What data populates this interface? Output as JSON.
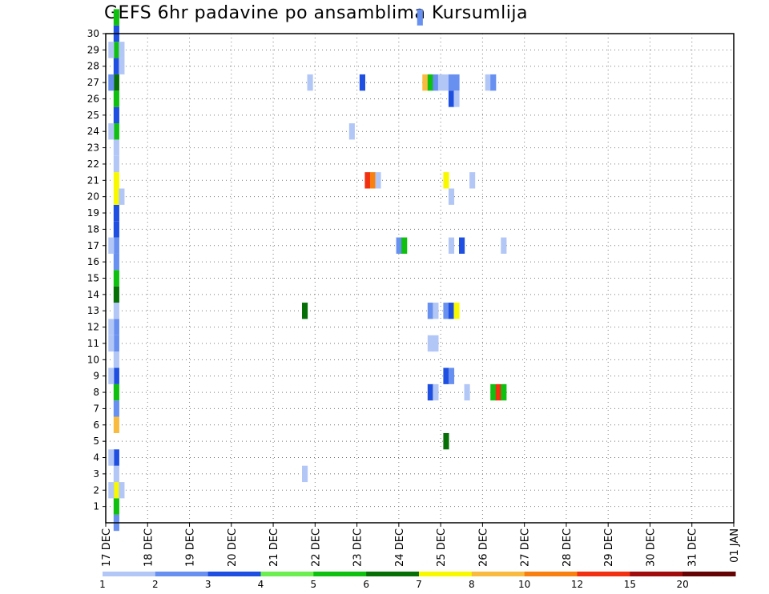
{
  "title": "GEFS 6hr padavine po ansamblima Kursumlija",
  "chart_data": {
    "type": "heatmap",
    "title": "GEFS 6hr padavine po ansamblima Kursumlija",
    "x_tick_labels": [
      "17 DEC",
      "18 DEC",
      "19 DEC",
      "20 DEC",
      "21 DEC",
      "22 DEC",
      "23 DEC",
      "24 DEC",
      "25 DEC",
      "26 DEC",
      "27 DEC",
      "28 DEC",
      "29 DEC",
      "30 DEC",
      "31 DEC",
      "01 JAN"
    ],
    "y_tick_labels": [
      1,
      2,
      3,
      4,
      5,
      6,
      7,
      8,
      9,
      10,
      11,
      12,
      13,
      14,
      15,
      16,
      17,
      18,
      19,
      20,
      21,
      22,
      23,
      24,
      25,
      26,
      27,
      28,
      29,
      30
    ],
    "x_unit": "6-hour steps from 17 DEC 00Z",
    "xlim": [
      0,
      60
    ],
    "ylim": [
      0,
      30
    ],
    "grid": true,
    "colorbar": {
      "labels": [
        "1",
        "2",
        "3",
        "4",
        "5",
        "6",
        "7",
        "8",
        "10",
        "12",
        "15",
        "20"
      ],
      "colors": [
        "#b3c7f7",
        "#6890f0",
        "#1f4fe0",
        "#6cee50",
        "#10c010",
        "#067006",
        "#f8f800",
        "#f8bb40",
        "#f88010",
        "#f03010",
        "#a00c0c",
        "#640404"
      ]
    },
    "cells": [
      {
        "x": 0.75,
        "y": 0,
        "c": 2
      },
      {
        "x": 0.75,
        "y": 1,
        "c": 5
      },
      {
        "x": 0.75,
        "y": 2,
        "c": 7
      },
      {
        "x": 0.25,
        "y": 2,
        "c": 1
      },
      {
        "x": 1.25,
        "y": 2,
        "c": 1
      },
      {
        "x": 0.75,
        "y": 3,
        "c": 1
      },
      {
        "x": 0.75,
        "y": 4,
        "c": 3
      },
      {
        "x": 0.25,
        "y": 4,
        "c": 1
      },
      {
        "x": 0.75,
        "y": 6,
        "c": 8
      },
      {
        "x": 0.75,
        "y": 7,
        "c": 2
      },
      {
        "x": 0.75,
        "y": 8,
        "c": 5
      },
      {
        "x": 0.75,
        "y": 9,
        "c": 3
      },
      {
        "x": 0.25,
        "y": 9,
        "c": 1
      },
      {
        "x": 0.75,
        "y": 10,
        "c": 1
      },
      {
        "x": 0.75,
        "y": 11,
        "c": 2
      },
      {
        "x": 0.25,
        "y": 11,
        "c": 1
      },
      {
        "x": 0.75,
        "y": 12,
        "c": 2
      },
      {
        "x": 0.25,
        "y": 12,
        "c": 1
      },
      {
        "x": 0.75,
        "y": 13,
        "c": 1
      },
      {
        "x": 0.75,
        "y": 14,
        "c": 6
      },
      {
        "x": 0.75,
        "y": 15,
        "c": 5
      },
      {
        "x": 0.75,
        "y": 16,
        "c": 2
      },
      {
        "x": 0.75,
        "y": 17,
        "c": 2
      },
      {
        "x": 0.25,
        "y": 17,
        "c": 1
      },
      {
        "x": 0.75,
        "y": 18,
        "c": 3
      },
      {
        "x": 0.75,
        "y": 19,
        "c": 3
      },
      {
        "x": 0.75,
        "y": 20,
        "c": 7
      },
      {
        "x": 1.25,
        "y": 20,
        "c": 1
      },
      {
        "x": 0.75,
        "y": 21,
        "c": 7
      },
      {
        "x": 0.75,
        "y": 22,
        "c": 1
      },
      {
        "x": 0.75,
        "y": 23,
        "c": 1
      },
      {
        "x": 0.75,
        "y": 24,
        "c": 5
      },
      {
        "x": 0.25,
        "y": 24,
        "c": 1
      },
      {
        "x": 0.75,
        "y": 25,
        "c": 3
      },
      {
        "x": 0.75,
        "y": 26,
        "c": 5
      },
      {
        "x": 0.75,
        "y": 27,
        "c": 6
      },
      {
        "x": 0.25,
        "y": 27,
        "c": 2
      },
      {
        "x": 0.75,
        "y": 28,
        "c": 3
      },
      {
        "x": 1.25,
        "y": 28,
        "c": 1
      },
      {
        "x": 0.75,
        "y": 29,
        "c": 5
      },
      {
        "x": 0.25,
        "y": 29,
        "c": 1
      },
      {
        "x": 1.25,
        "y": 29,
        "c": 1
      },
      {
        "x": 0.75,
        "y": 30,
        "c": 3
      },
      {
        "x": 0.75,
        "y": 31,
        "c": 5
      },
      {
        "x": 29.75,
        "y": 31,
        "c": 2
      },
      {
        "x": 30.25,
        "y": 27,
        "c": 8
      },
      {
        "x": 30.75,
        "y": 27,
        "c": 5
      },
      {
        "x": 31.25,
        "y": 27,
        "c": 2
      },
      {
        "x": 31.75,
        "y": 27,
        "c": 1
      },
      {
        "x": 32.25,
        "y": 27,
        "c": 1
      },
      {
        "x": 32.75,
        "y": 27,
        "c": 2
      },
      {
        "x": 33.25,
        "y": 27,
        "c": 2
      },
      {
        "x": 32.75,
        "y": 26,
        "c": 3
      },
      {
        "x": 33.25,
        "y": 26,
        "c": 1
      },
      {
        "x": 19.25,
        "y": 27,
        "c": 1
      },
      {
        "x": 24.25,
        "y": 27,
        "c": 3
      },
      {
        "x": 36.25,
        "y": 27,
        "c": 1
      },
      {
        "x": 36.75,
        "y": 27,
        "c": 2
      },
      {
        "x": 23.25,
        "y": 24,
        "c": 1
      },
      {
        "x": 24.75,
        "y": 21,
        "c": 10
      },
      {
        "x": 25.25,
        "y": 21,
        "c": 9
      },
      {
        "x": 25.75,
        "y": 21,
        "c": 1
      },
      {
        "x": 32.25,
        "y": 21,
        "c": 7
      },
      {
        "x": 34.75,
        "y": 21,
        "c": 1
      },
      {
        "x": 32.75,
        "y": 20,
        "c": 1
      },
      {
        "x": 27.75,
        "y": 17,
        "c": 2
      },
      {
        "x": 28.25,
        "y": 17,
        "c": 5
      },
      {
        "x": 32.75,
        "y": 17,
        "c": 1
      },
      {
        "x": 33.75,
        "y": 17,
        "c": 3
      },
      {
        "x": 37.75,
        "y": 17,
        "c": 1
      },
      {
        "x": 18.75,
        "y": 13,
        "c": 6
      },
      {
        "x": 30.75,
        "y": 13,
        "c": 2
      },
      {
        "x": 31.25,
        "y": 13,
        "c": 1
      },
      {
        "x": 32.25,
        "y": 13,
        "c": 2
      },
      {
        "x": 32.75,
        "y": 13,
        "c": 3
      },
      {
        "x": 33.25,
        "y": 13,
        "c": 7
      },
      {
        "x": 30.75,
        "y": 11,
        "c": 1
      },
      {
        "x": 31.25,
        "y": 11,
        "c": 1
      },
      {
        "x": 32.25,
        "y": 9,
        "c": 3
      },
      {
        "x": 32.75,
        "y": 9,
        "c": 2
      },
      {
        "x": 30.75,
        "y": 8,
        "c": 3
      },
      {
        "x": 31.25,
        "y": 8,
        "c": 1
      },
      {
        "x": 34.25,
        "y": 8,
        "c": 1
      },
      {
        "x": 36.75,
        "y": 8,
        "c": 5
      },
      {
        "x": 37.25,
        "y": 8,
        "c": 10
      },
      {
        "x": 37.75,
        "y": 8,
        "c": 5
      },
      {
        "x": 32.25,
        "y": 5,
        "c": 6
      },
      {
        "x": 18.75,
        "y": 3,
        "c": 1
      }
    ]
  }
}
